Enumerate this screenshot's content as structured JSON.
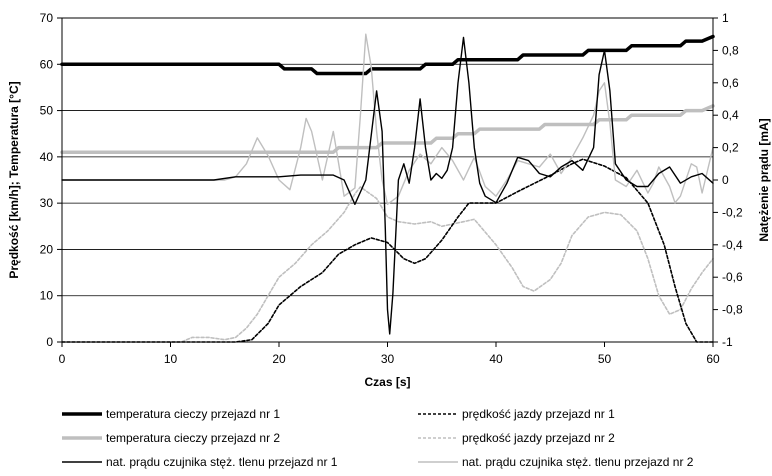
{
  "chart_data": {
    "type": "line",
    "xlabel": "Czas [s]",
    "ylabel_left": "Prędkość [km/h]; Temperatura [°C]",
    "ylabel_right": "Natężenie prądu [mA]",
    "xlim": [
      0,
      60
    ],
    "ylim_left": [
      0,
      70
    ],
    "ylim_right": [
      -1,
      1
    ],
    "x_ticks": [
      "0",
      "10",
      "20",
      "30",
      "40",
      "50",
      "60"
    ],
    "y_left_ticks": [
      "0",
      "10",
      "20",
      "30",
      "40",
      "50",
      "60",
      "70"
    ],
    "y_right_ticks": [
      "-1",
      "-0,8",
      "-0,6",
      "-0,4",
      "-0,2",
      "0",
      "0,2",
      "0,4",
      "0,6",
      "0,8",
      "1"
    ],
    "grid": "horizontal",
    "legend_position": "bottom",
    "series": [
      {
        "name": "temperatura cieczy przejazd nr 1",
        "axis": "left",
        "color": "#000000",
        "style": "solid-thick",
        "points": [
          [
            0,
            60
          ],
          [
            20,
            60
          ],
          [
            20.5,
            59
          ],
          [
            23,
            59
          ],
          [
            23.5,
            58
          ],
          [
            28,
            58
          ],
          [
            28.5,
            59
          ],
          [
            33,
            59
          ],
          [
            33.5,
            60
          ],
          [
            36,
            60
          ],
          [
            36.5,
            61
          ],
          [
            42,
            61
          ],
          [
            42.5,
            62
          ],
          [
            48,
            62
          ],
          [
            48.5,
            63
          ],
          [
            52,
            63
          ],
          [
            52.5,
            64
          ],
          [
            57,
            64
          ],
          [
            57.5,
            65
          ],
          [
            59,
            65
          ],
          [
            60,
            66
          ]
        ]
      },
      {
        "name": "temperatura cieczy przejazd nr 2",
        "axis": "left",
        "color": "#bfbfbf",
        "style": "solid-thick",
        "points": [
          [
            0,
            41
          ],
          [
            25,
            41
          ],
          [
            25.5,
            42
          ],
          [
            29,
            42
          ],
          [
            29.5,
            43
          ],
          [
            34,
            43
          ],
          [
            34.5,
            44
          ],
          [
            36,
            44
          ],
          [
            36.5,
            45
          ],
          [
            38,
            45
          ],
          [
            38.5,
            46
          ],
          [
            44,
            46
          ],
          [
            44.5,
            47
          ],
          [
            49,
            47
          ],
          [
            49.5,
            48
          ],
          [
            52,
            48
          ],
          [
            52.5,
            49
          ],
          [
            57,
            49
          ],
          [
            57.5,
            50
          ],
          [
            59,
            50
          ],
          [
            60,
            51
          ]
        ]
      },
      {
        "name": "prędkość jazdy przejazd nr 1",
        "axis": "left",
        "color": "#000000",
        "style": "dashed",
        "points": [
          [
            0,
            0
          ],
          [
            16,
            0
          ],
          [
            17.5,
            0.5
          ],
          [
            19,
            4
          ],
          [
            20,
            8
          ],
          [
            22,
            12
          ],
          [
            24,
            15
          ],
          [
            25.5,
            19
          ],
          [
            27,
            21
          ],
          [
            28.5,
            22.5
          ],
          [
            30,
            21.5
          ],
          [
            31.5,
            18
          ],
          [
            32.5,
            17
          ],
          [
            33.5,
            18
          ],
          [
            35,
            22
          ],
          [
            36.5,
            27
          ],
          [
            37.5,
            30
          ],
          [
            40,
            30
          ],
          [
            42,
            32.5
          ],
          [
            45,
            36
          ],
          [
            47,
            38.5
          ],
          [
            48,
            39.5
          ],
          [
            50,
            38
          ],
          [
            52,
            35.5
          ],
          [
            54,
            30
          ],
          [
            55.5,
            21
          ],
          [
            56.5,
            12
          ],
          [
            57.5,
            4
          ],
          [
            58.5,
            0
          ],
          [
            60,
            0
          ]
        ]
      },
      {
        "name": "prędkość jazdy przejazd  nr 2",
        "axis": "left",
        "color": "#bfbfbf",
        "style": "dashed",
        "points": [
          [
            0,
            0
          ],
          [
            11,
            0
          ],
          [
            12,
            1
          ],
          [
            13.5,
            1
          ],
          [
            15,
            0.5
          ],
          [
            16,
            1
          ],
          [
            17,
            3
          ],
          [
            18,
            6
          ],
          [
            19,
            10
          ],
          [
            20,
            14
          ],
          [
            21.5,
            17
          ],
          [
            23,
            21
          ],
          [
            24.5,
            24
          ],
          [
            26,
            28
          ],
          [
            27,
            32
          ],
          [
            27.5,
            33.5
          ],
          [
            29,
            31
          ],
          [
            30,
            27
          ],
          [
            31,
            26
          ],
          [
            32.5,
            25.5
          ],
          [
            34,
            26
          ],
          [
            35,
            25
          ],
          [
            37,
            26
          ],
          [
            38,
            26.5
          ],
          [
            40,
            21
          ],
          [
            41.5,
            16
          ],
          [
            42.5,
            12
          ],
          [
            43.5,
            11
          ],
          [
            45,
            13.5
          ],
          [
            46,
            17
          ],
          [
            47,
            23
          ],
          [
            48.5,
            27
          ],
          [
            50,
            28
          ],
          [
            51.5,
            27.5
          ],
          [
            53,
            24
          ],
          [
            54,
            18
          ],
          [
            55,
            10
          ],
          [
            56,
            6
          ],
          [
            57,
            7
          ],
          [
            58,
            11.5
          ],
          [
            59,
            15
          ],
          [
            60,
            18
          ]
        ]
      },
      {
        "name": "nat. prądu czujnika stęż. tlenu przejazd nr 1",
        "axis": "right",
        "color": "#000000",
        "style": "solid-thin",
        "points": [
          [
            0,
            0
          ],
          [
            14,
            0
          ],
          [
            16,
            0.02
          ],
          [
            20,
            0.02
          ],
          [
            22,
            0.03
          ],
          [
            25,
            0.03
          ],
          [
            26,
            0
          ],
          [
            27,
            -0.15
          ],
          [
            28,
            0
          ],
          [
            29,
            0.55
          ],
          [
            29.5,
            0.3
          ],
          [
            29.8,
            -0.3
          ],
          [
            30,
            -0.8
          ],
          [
            30.2,
            -0.95
          ],
          [
            30.5,
            -0.7
          ],
          [
            31,
            0
          ],
          [
            31.5,
            0.1
          ],
          [
            32,
            -0.02
          ],
          [
            32.5,
            0.2
          ],
          [
            33,
            0.5
          ],
          [
            33.5,
            0.2
          ],
          [
            34,
            0
          ],
          [
            34.5,
            0.04
          ],
          [
            35,
            0.01
          ],
          [
            35.5,
            0.06
          ],
          [
            36,
            0.2
          ],
          [
            36.5,
            0.6
          ],
          [
            37,
            0.88
          ],
          [
            37.5,
            0.6
          ],
          [
            38,
            0.2
          ],
          [
            38.5,
            -0.02
          ],
          [
            39,
            -0.1
          ],
          [
            40,
            -0.14
          ],
          [
            41,
            -0.02
          ],
          [
            42,
            0.14
          ],
          [
            43,
            0.12
          ],
          [
            44,
            0.04
          ],
          [
            45,
            0.02
          ],
          [
            46,
            0.08
          ],
          [
            47,
            0.12
          ],
          [
            48,
            0.06
          ],
          [
            49,
            0.2
          ],
          [
            49.5,
            0.65
          ],
          [
            50,
            0.8
          ],
          [
            50.5,
            0.55
          ],
          [
            51,
            0.1
          ],
          [
            52,
            0
          ],
          [
            52.5,
            -0.02
          ],
          [
            53,
            -0.04
          ],
          [
            54,
            -0.04
          ],
          [
            55,
            0.04
          ],
          [
            56,
            0.08
          ],
          [
            57,
            -0.02
          ],
          [
            58,
            0.02
          ],
          [
            59,
            0.04
          ],
          [
            60,
            -0.02
          ]
        ]
      },
      {
        "name": "nat. prądu czujnika stęż. tlenu przejazd nr 2",
        "axis": "right",
        "color": "#bfbfbf",
        "style": "solid-thin",
        "points": [
          [
            0,
            0
          ],
          [
            15,
            0
          ],
          [
            16,
            0.02
          ],
          [
            17,
            0.1
          ],
          [
            18,
            0.26
          ],
          [
            19,
            0.15
          ],
          [
            20,
            0
          ],
          [
            21,
            -0.06
          ],
          [
            22,
            0.2
          ],
          [
            22.5,
            0.38
          ],
          [
            23,
            0.3
          ],
          [
            24,
            0
          ],
          [
            25,
            0.3
          ],
          [
            26,
            -0.1
          ],
          [
            27,
            -0.05
          ],
          [
            27.5,
            0.4
          ],
          [
            28,
            0.9
          ],
          [
            28.5,
            0.7
          ],
          [
            29,
            0.3
          ],
          [
            29.5,
            0
          ],
          [
            30,
            -0.15
          ],
          [
            31,
            -0.1
          ],
          [
            32,
            0.06
          ],
          [
            33,
            0.16
          ],
          [
            34,
            0.1
          ],
          [
            35,
            0.2
          ],
          [
            36,
            0.12
          ],
          [
            37,
            0
          ],
          [
            38,
            0.14
          ],
          [
            39,
            -0.04
          ],
          [
            40,
            -0.1
          ],
          [
            41,
            0
          ],
          [
            42,
            0.12
          ],
          [
            43,
            0.1
          ],
          [
            44,
            0.08
          ],
          [
            45,
            0.16
          ],
          [
            46,
            0.04
          ],
          [
            47,
            0.14
          ],
          [
            48,
            0.26
          ],
          [
            49,
            0.4
          ],
          [
            49.5,
            0.55
          ],
          [
            50,
            0.6
          ],
          [
            50.5,
            0.35
          ],
          [
            51,
            0
          ],
          [
            52,
            -0.04
          ],
          [
            53,
            0.06
          ],
          [
            54,
            -0.08
          ],
          [
            54.5,
            -0.02
          ],
          [
            55,
            0.08
          ],
          [
            56,
            -0.04
          ],
          [
            56.5,
            -0.14
          ],
          [
            57,
            -0.1
          ],
          [
            58,
            0.1
          ],
          [
            58.5,
            0.08
          ],
          [
            59,
            -0.08
          ],
          [
            60,
            0.2
          ]
        ]
      }
    ]
  }
}
